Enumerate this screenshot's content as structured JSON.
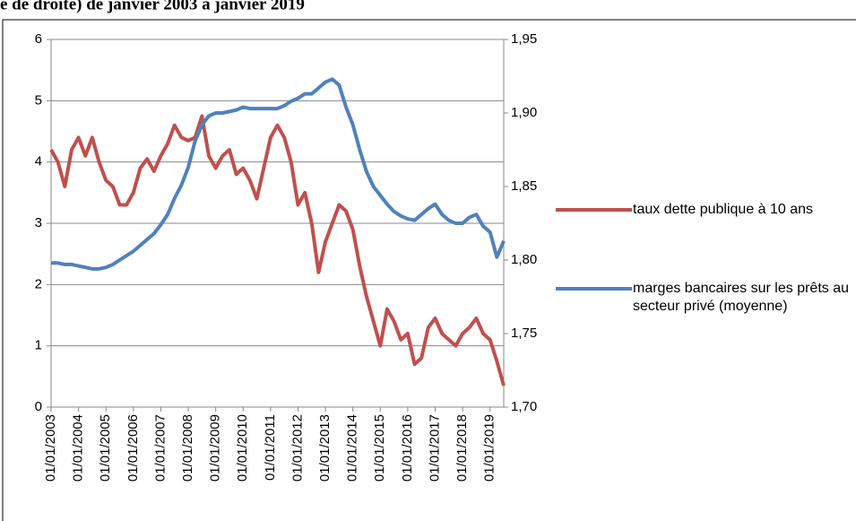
{
  "chart_data": {
    "type": "line",
    "title": "e de droite) de janvier 2003 à janvier 2019",
    "x": [
      "01/01/2003",
      "01/04/2003",
      "01/07/2003",
      "01/10/2003",
      "01/01/2004",
      "01/04/2004",
      "01/07/2004",
      "01/10/2004",
      "01/01/2005",
      "01/04/2005",
      "01/07/2005",
      "01/10/2005",
      "01/01/2006",
      "01/04/2006",
      "01/07/2006",
      "01/10/2006",
      "01/01/2007",
      "01/04/2007",
      "01/07/2007",
      "01/10/2007",
      "01/01/2008",
      "01/04/2008",
      "01/07/2008",
      "01/10/2008",
      "01/01/2009",
      "01/04/2009",
      "01/07/2009",
      "01/10/2009",
      "01/01/2010",
      "01/04/2010",
      "01/07/2010",
      "01/10/2010",
      "01/01/2011",
      "01/04/2011",
      "01/07/2011",
      "01/10/2011",
      "01/01/2012",
      "01/04/2012",
      "01/07/2012",
      "01/10/2012",
      "01/01/2013",
      "01/04/2013",
      "01/07/2013",
      "01/10/2013",
      "01/01/2014",
      "01/04/2014",
      "01/07/2014",
      "01/10/2014",
      "01/01/2015",
      "01/04/2015",
      "01/07/2015",
      "01/10/2015",
      "01/01/2016",
      "01/04/2016",
      "01/07/2016",
      "01/10/2016",
      "01/01/2017",
      "01/04/2017",
      "01/07/2017",
      "01/10/2017",
      "01/01/2018",
      "01/04/2018",
      "01/07/2018",
      "01/10/2018",
      "01/01/2019",
      "01/04/2019",
      "01/07/2019"
    ],
    "xlim": [
      "01/01/2003",
      "01/07/2019"
    ],
    "xticks": [
      "01/01/2003",
      "01/01/2004",
      "01/01/2005",
      "01/01/2006",
      "01/01/2007",
      "01/01/2008",
      "01/01/2009",
      "01/01/2010",
      "01/01/2011",
      "01/01/2012",
      "01/01/2013",
      "01/01/2014",
      "01/01/2015",
      "01/01/2016",
      "01/01/2017",
      "01/01/2018",
      "01/01/2019"
    ],
    "ylim": [
      0,
      6
    ],
    "yticks": [
      0,
      1,
      2,
      3,
      4,
      5,
      6
    ],
    "y2lim": [
      1.7,
      1.95
    ],
    "y2ticks": [
      {
        "value": 1.7,
        "label": "1,70"
      },
      {
        "value": 1.75,
        "label": "1,75"
      },
      {
        "value": 1.8,
        "label": "1,80"
      },
      {
        "value": 1.85,
        "label": "1,85"
      },
      {
        "value": 1.9,
        "label": "1,90"
      },
      {
        "value": 1.95,
        "label": "1,95"
      }
    ],
    "grid": true,
    "legend": "right",
    "series": [
      {
        "name": "taux dette publique à 10 ans",
        "color": "#c0504d",
        "values": [
          4.2,
          4.0,
          3.6,
          4.2,
          4.4,
          4.1,
          4.4,
          4.0,
          3.7,
          3.6,
          3.3,
          3.3,
          3.5,
          3.9,
          4.05,
          3.85,
          4.1,
          4.3,
          4.6,
          4.4,
          4.35,
          4.4,
          4.75,
          4.1,
          3.9,
          4.1,
          4.2,
          3.8,
          3.9,
          3.7,
          3.4,
          3.9,
          4.4,
          4.6,
          4.4,
          4.0,
          3.3,
          3.5,
          3.0,
          2.2,
          2.7,
          3.0,
          3.3,
          3.2,
          2.9,
          2.3,
          1.8,
          1.4,
          1.0,
          1.6,
          1.4,
          1.1,
          1.2,
          0.7,
          0.8,
          1.3,
          1.45,
          1.2,
          1.1,
          1.0,
          1.2,
          1.3,
          1.45,
          1.2,
          1.1,
          0.75,
          0.35
        ]
      },
      {
        "name": "marges bancaires sur les prêts au secteur privé (moyenne)",
        "color": "#4f81bd",
        "axis": "y2",
        "values": [
          1.798,
          1.798,
          1.797,
          1.797,
          1.796,
          1.795,
          1.794,
          1.794,
          1.795,
          1.797,
          1.8,
          1.803,
          1.806,
          1.81,
          1.814,
          1.818,
          1.824,
          1.831,
          1.842,
          1.851,
          1.863,
          1.881,
          1.892,
          1.898,
          1.9,
          1.9,
          1.901,
          1.902,
          1.904,
          1.903,
          1.903,
          1.903,
          1.903,
          1.903,
          1.905,
          1.908,
          1.91,
          1.913,
          1.913,
          1.917,
          1.921,
          1.923,
          1.919,
          1.904,
          1.892,
          1.875,
          1.86,
          1.85,
          1.844,
          1.838,
          1.833,
          1.83,
          1.828,
          1.827,
          1.831,
          1.835,
          1.838,
          1.831,
          1.827,
          1.825,
          1.825,
          1.829,
          1.831,
          1.823,
          1.819,
          1.802,
          1.813
        ]
      }
    ]
  }
}
